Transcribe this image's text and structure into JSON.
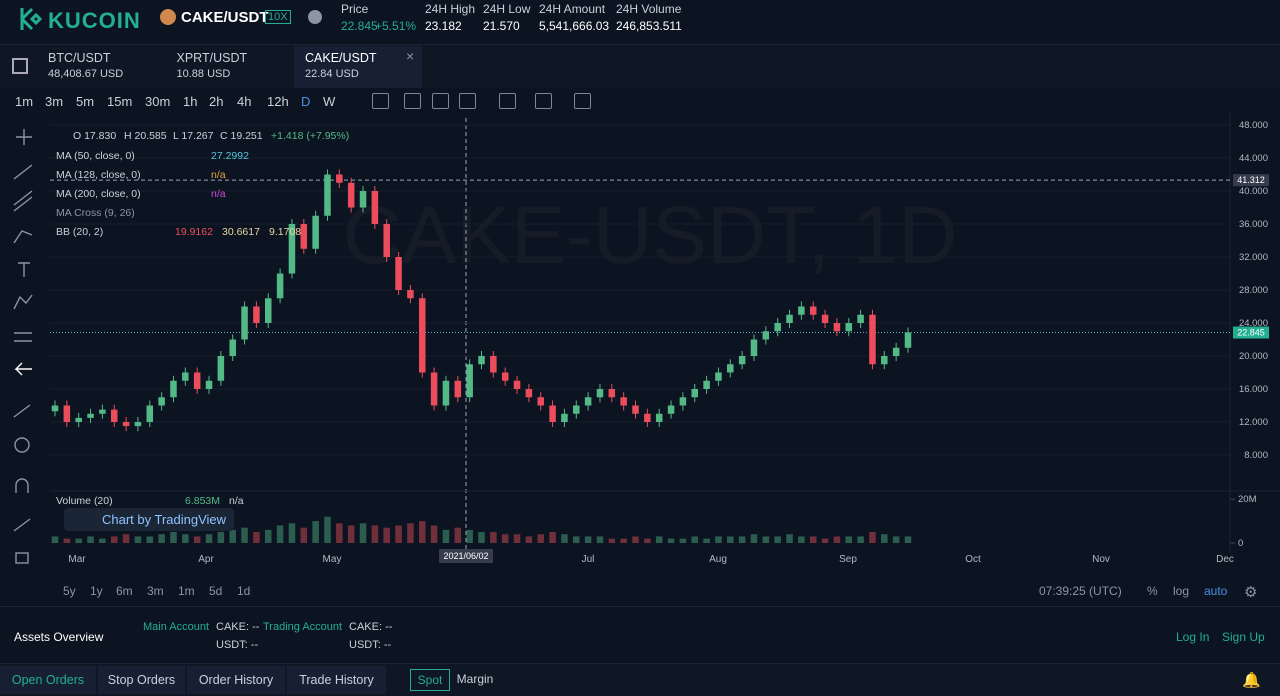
{
  "header": {
    "logo": "KUCOIN",
    "pair": "CAKE/USDT",
    "leverage": "10X",
    "stats": [
      {
        "label": "Price",
        "value": "22.845",
        "change": "+5.51%"
      },
      {
        "label": "24H High",
        "value": "23.182"
      },
      {
        "label": "24H Low",
        "value": "21.570"
      },
      {
        "label": "24H Amount",
        "value": "5,541,666.03"
      },
      {
        "label": "24H Volume",
        "value": "246,853.511"
      }
    ]
  },
  "tabs": [
    {
      "pair": "BTC/USDT",
      "price": "48,408.67 USD"
    },
    {
      "pair": "XPRT/USDT",
      "price": "10.88 USD"
    },
    {
      "pair": "CAKE/USDT",
      "price": "22.84 USD"
    }
  ],
  "intervals": [
    "1m",
    "3m",
    "5m",
    "15m",
    "30m",
    "1h",
    "2h",
    "4h",
    "12h",
    "D",
    "W"
  ],
  "chart": {
    "type": "candlestick",
    "watermark": "CAKE-USDT, 1D",
    "ohlc": {
      "O": "O 17.830",
      "H": "H 20.585",
      "L": "L 17.267",
      "C": "C 19.251",
      "change": "+1.418 (+7.95%)"
    },
    "studies": [
      {
        "name": "MA (50, close, 0)",
        "values": [
          "27.2992"
        ]
      },
      {
        "name": "MA (128, close, 0)",
        "values": [
          "n/a"
        ]
      },
      {
        "name": "MA (200, close, 0)",
        "values": [
          "n/a"
        ]
      },
      {
        "name": "MA Cross (9, 26)",
        "values": []
      },
      {
        "name": "BB (20, 2)",
        "values": [
          "19.9162",
          "30.6617",
          "9.1708"
        ]
      }
    ],
    "volume_study": {
      "name": "Volume (20)",
      "values": [
        "6.853M",
        "n/a"
      ]
    },
    "branding": "Chart by TradingView",
    "ylim": [
      4,
      48.85
    ],
    "yticks": [
      {
        "value": 8,
        "label": "8.000"
      },
      {
        "value": 12,
        "label": "12.000"
      },
      {
        "value": 16,
        "label": "16.000"
      },
      {
        "value": 20,
        "label": "20.000"
      },
      {
        "value": 24,
        "label": "24.000"
      },
      {
        "value": 28,
        "label": "28.000"
      },
      {
        "value": 32,
        "label": "32.000"
      },
      {
        "value": 36,
        "label": "36.000"
      },
      {
        "value": 40,
        "label": "40.000"
      },
      {
        "value": 44,
        "label": "44.000"
      },
      {
        "value": 48,
        "label": "48.000"
      }
    ],
    "price_lines": [
      41.312,
      22.845
    ],
    "volume_ylim": [
      0,
      21
    ],
    "volume_ticks": [
      {
        "value": 20,
        "label": "20M"
      },
      0
    ],
    "months": [
      "Mar",
      "Apr",
      "May",
      "Jul",
      "Aug",
      "Sep",
      "Oct",
      "Nov",
      "Dec"
    ],
    "crosshair_date": "2021/06/02",
    "closes": [
      14,
      12,
      12.5,
      13,
      13.5,
      12,
      11.5,
      12,
      14,
      15,
      17,
      18,
      16,
      17,
      20,
      22,
      26,
      24,
      27,
      30,
      36,
      33,
      37,
      42,
      41,
      38,
      40,
      36,
      32,
      28,
      27,
      18,
      14,
      17,
      15,
      19,
      20,
      18,
      17,
      16,
      15,
      14,
      12,
      13,
      14,
      15,
      16,
      15,
      14,
      13,
      12,
      13,
      14,
      15,
      16,
      17,
      18,
      19,
      20,
      22,
      23,
      24,
      25,
      26,
      25,
      24,
      23,
      24,
      25,
      19,
      20,
      21,
      22.845
    ],
    "volumes": [
      3,
      2,
      2,
      3,
      2,
      3,
      4,
      3,
      3,
      4,
      5,
      4,
      3,
      4,
      5,
      6,
      7,
      5,
      6,
      8,
      9,
      7,
      10,
      12,
      9,
      8,
      9,
      8,
      7,
      8,
      9,
      10,
      8,
      6,
      7,
      6,
      5,
      5,
      4,
      4,
      3,
      4,
      5,
      4,
      3,
      3,
      3,
      2,
      2,
      3,
      2,
      3,
      2,
      2,
      3,
      2,
      3,
      3,
      3,
      4,
      3,
      3,
      4,
      3,
      3,
      2,
      3,
      3,
      3,
      5,
      4,
      3,
      3
    ]
  },
  "ranges": [
    "5y",
    "1y",
    "6m",
    "3m",
    "1m",
    "5d",
    "1d"
  ],
  "clock": "07:39:25 (UTC)",
  "scale_options": [
    "%",
    "log",
    "auto"
  ],
  "assets": {
    "title": "Assets Overview",
    "accounts": [
      {
        "name": "Main Account",
        "lines": [
          "CAKE: --",
          "USDT: --"
        ]
      },
      {
        "name": "Trading Account",
        "lines": [
          "CAKE: --",
          "USDT: --"
        ]
      }
    ],
    "login": "Log In",
    "signup": "Sign Up"
  },
  "orders": {
    "tabs": [
      "Open Orders",
      "Stop Orders",
      "Order History",
      "Trade History"
    ],
    "filters": [
      "Spot",
      "Margin"
    ]
  }
}
